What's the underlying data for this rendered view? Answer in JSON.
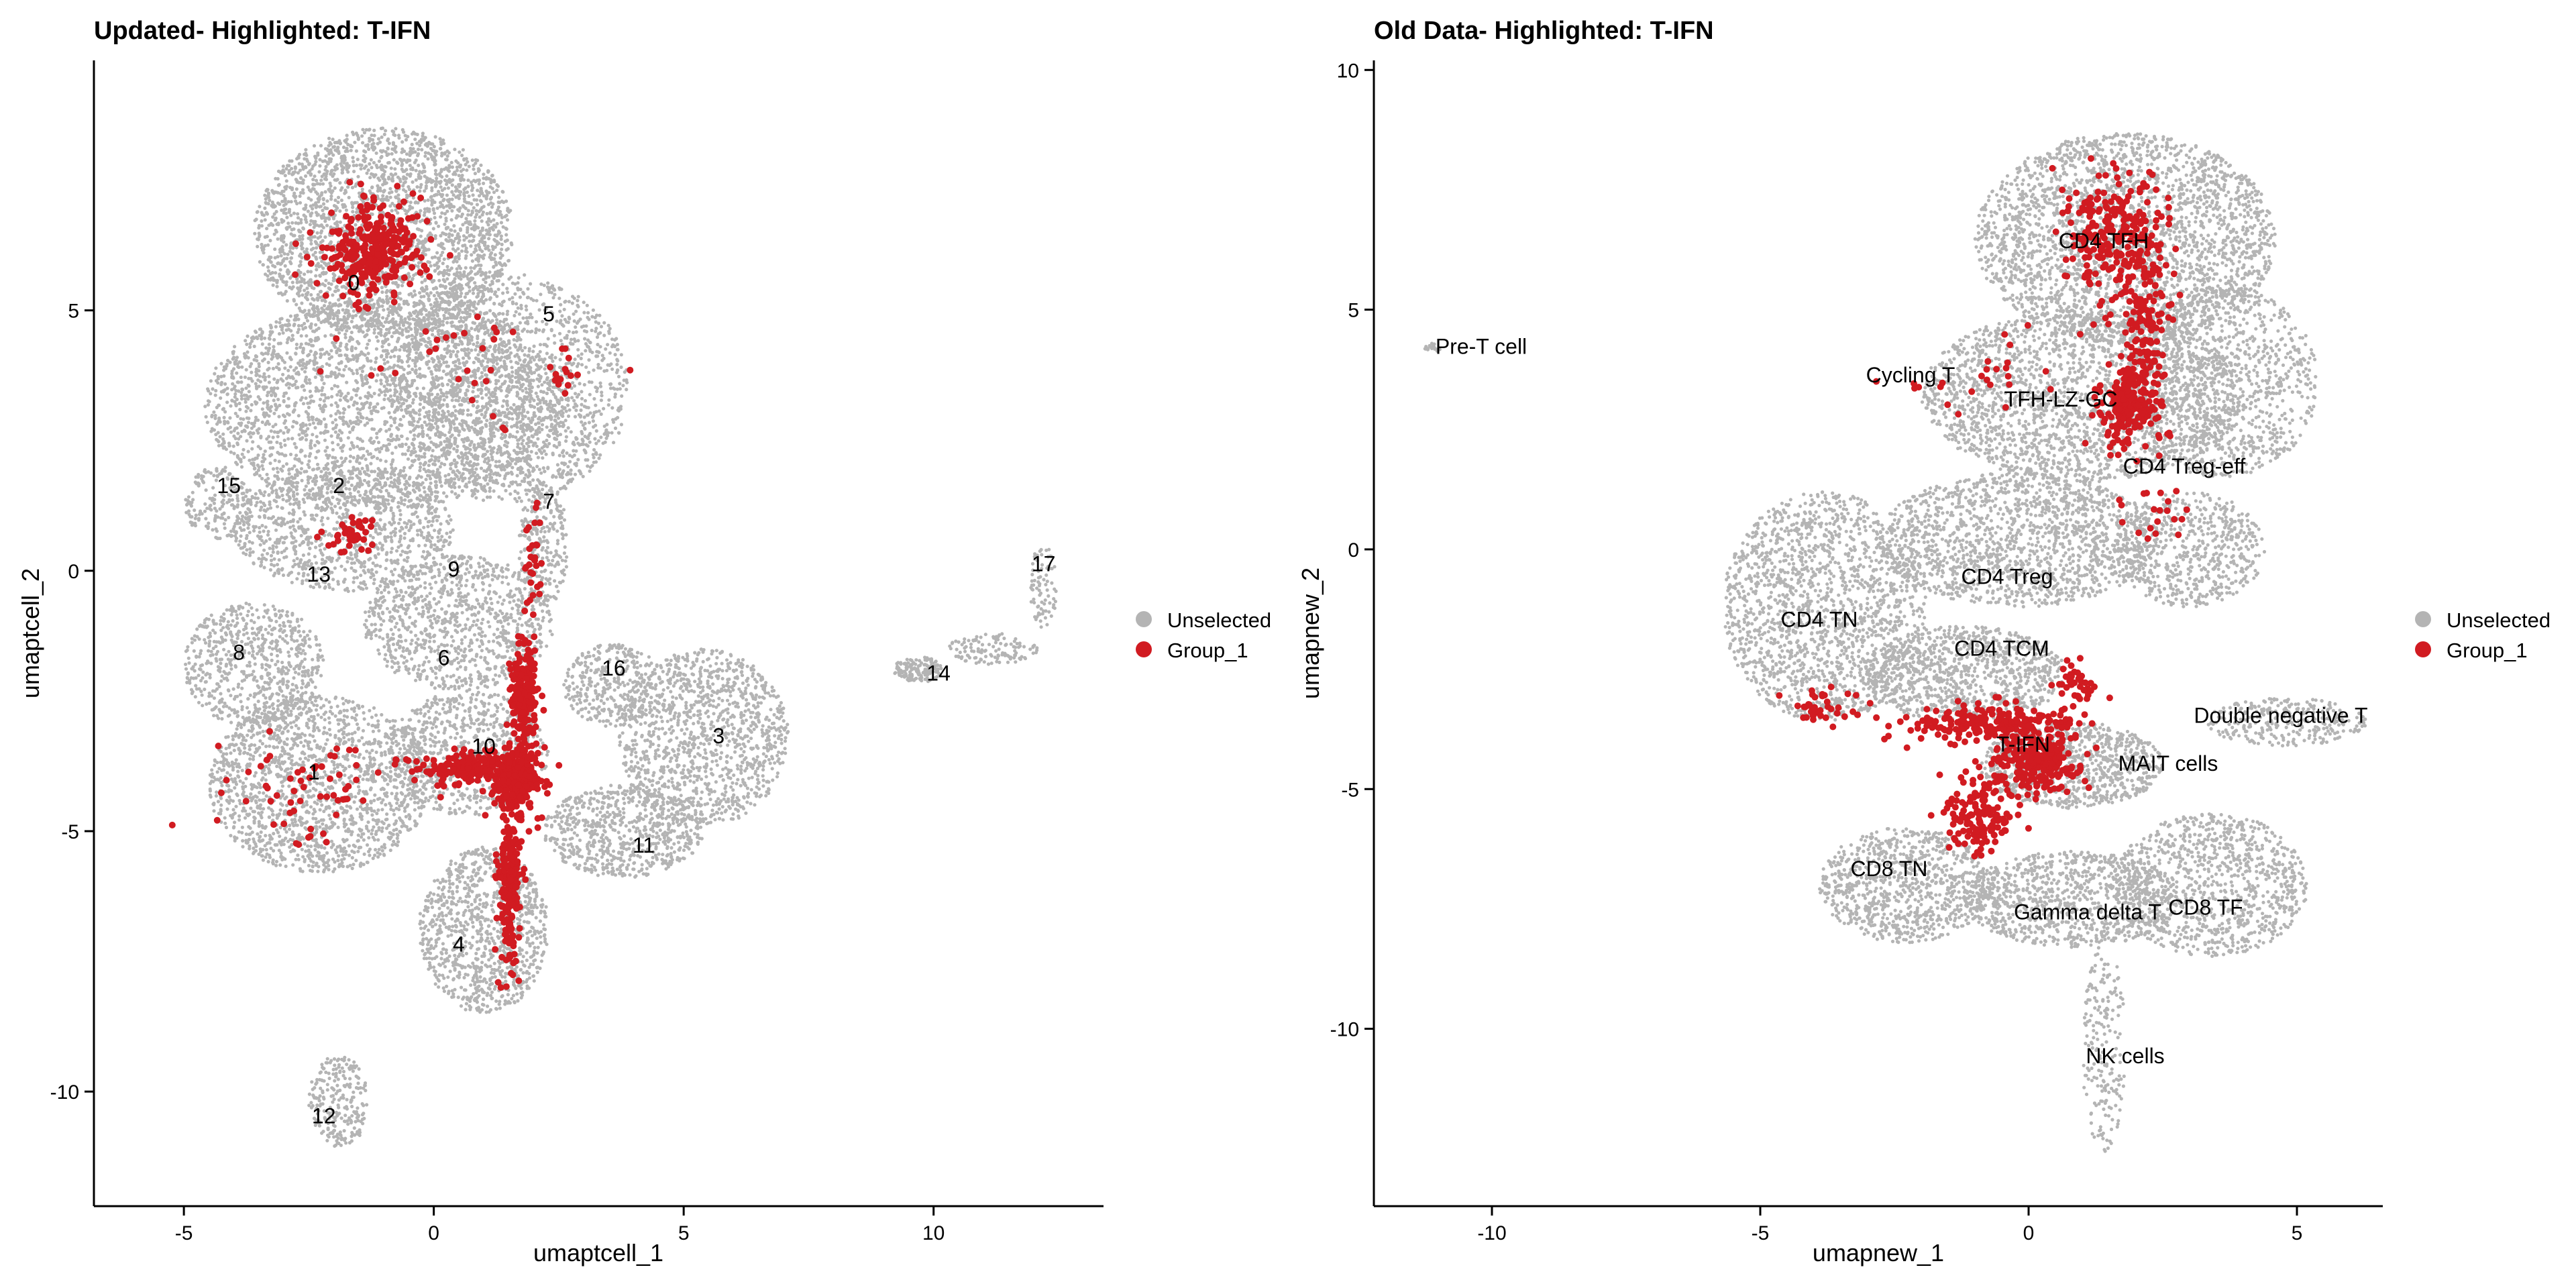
{
  "colors": {
    "unselected": "#b4b4b4",
    "group": "#d11b21",
    "axis": "#000000",
    "text": "#000000"
  },
  "chart_data": [
    {
      "type": "scatter",
      "title": "Updated- Highlighted: T-IFN",
      "xlabel": "umaptcell_1",
      "ylabel": "umaptcell_2",
      "xlim": [
        -6.8,
        13.4
      ],
      "ylim": [
        -12.2,
        9.8
      ],
      "xticks": [
        -5,
        0,
        5,
        10
      ],
      "yticks": [
        -10,
        -5,
        0,
        5
      ],
      "legend": {
        "placement": "right",
        "entries": [
          {
            "label": "Unselected",
            "color": "#b4b4b4"
          },
          {
            "label": "Group_1",
            "color": "#d11b21"
          }
        ]
      },
      "cluster_labels": [
        {
          "text": "0",
          "x": -1.6,
          "y": 5.5
        },
        {
          "text": "1",
          "x": -2.4,
          "y": -3.9
        },
        {
          "text": "2",
          "x": -1.9,
          "y": 1.6
        },
        {
          "text": "3",
          "x": 5.7,
          "y": -3.2
        },
        {
          "text": "4",
          "x": 0.5,
          "y": -7.2
        },
        {
          "text": "5",
          "x": 2.3,
          "y": 4.9
        },
        {
          "text": "6",
          "x": 0.2,
          "y": -1.7
        },
        {
          "text": "7",
          "x": 2.3,
          "y": 1.3
        },
        {
          "text": "8",
          "x": -3.9,
          "y": -1.6
        },
        {
          "text": "9",
          "x": 0.4,
          "y": 0.0
        },
        {
          "text": "10",
          "x": 1.0,
          "y": -3.4
        },
        {
          "text": "11",
          "x": 4.2,
          "y": -5.3
        },
        {
          "text": "12",
          "x": -2.2,
          "y": -10.5
        },
        {
          "text": "13",
          "x": -2.3,
          "y": -0.1
        },
        {
          "text": "14",
          "x": 10.1,
          "y": -2.0
        },
        {
          "text": "15",
          "x": -4.1,
          "y": 1.6
        },
        {
          "text": "16",
          "x": 3.6,
          "y": -1.9
        },
        {
          "text": "17",
          "x": 12.2,
          "y": 0.1
        }
      ],
      "unselected_regions": [
        {
          "cx": -1.0,
          "cy": 6.5,
          "rx": 2.6,
          "ry": 2.0,
          "n": 2600
        },
        {
          "cx": -1.0,
          "cy": 3.2,
          "rx": 3.6,
          "ry": 2.0,
          "n": 2800
        },
        {
          "cx": 1.5,
          "cy": 3.5,
          "rx": 2.4,
          "ry": 2.2,
          "n": 1600
        },
        {
          "cx": -1.8,
          "cy": 0.8,
          "rx": 2.2,
          "ry": 1.2,
          "n": 1000
        },
        {
          "cx": -4.3,
          "cy": 1.3,
          "rx": 0.7,
          "ry": 0.7,
          "n": 200
        },
        {
          "cx": 0.5,
          "cy": -1.0,
          "rx": 1.9,
          "ry": 1.3,
          "n": 1000
        },
        {
          "cx": -3.6,
          "cy": -1.8,
          "rx": 1.4,
          "ry": 1.2,
          "n": 700
        },
        {
          "cx": -2.3,
          "cy": -4.1,
          "rx": 2.2,
          "ry": 1.7,
          "n": 1600
        },
        {
          "cx": 0.7,
          "cy": -3.5,
          "rx": 1.6,
          "ry": 1.2,
          "n": 800
        },
        {
          "cx": 5.4,
          "cy": -3.2,
          "rx": 1.7,
          "ry": 1.7,
          "n": 1200
        },
        {
          "cx": 3.6,
          "cy": -2.2,
          "rx": 1.0,
          "ry": 0.8,
          "n": 350
        },
        {
          "cx": 3.8,
          "cy": -5.0,
          "rx": 1.6,
          "ry": 0.9,
          "n": 700
        },
        {
          "cx": 1.0,
          "cy": -6.9,
          "rx": 1.3,
          "ry": 1.6,
          "n": 1000
        },
        {
          "cx": -1.9,
          "cy": -10.2,
          "rx": 0.6,
          "ry": 0.9,
          "n": 250
        },
        {
          "cx": 2.2,
          "cy": 0.5,
          "rx": 0.5,
          "ry": 1.2,
          "n": 250
        },
        {
          "cx": 9.7,
          "cy": -1.9,
          "rx": 0.5,
          "ry": 0.25,
          "n": 150
        },
        {
          "cx": 11.2,
          "cy": -1.5,
          "rx": 0.9,
          "ry": 0.3,
          "n": 120
        },
        {
          "cx": 12.2,
          "cy": -0.3,
          "rx": 0.3,
          "ry": 0.8,
          "n": 80
        }
      ],
      "group_regions": [
        {
          "cx": -1.3,
          "cy": 6.2,
          "rx": 0.9,
          "ry": 0.8,
          "n": 300
        },
        {
          "cx": -1.6,
          "cy": 0.7,
          "rx": 0.5,
          "ry": 0.3,
          "n": 40
        },
        {
          "cx": -2.5,
          "cy": -4.3,
          "rx": 1.6,
          "ry": 0.9,
          "n": 60
        },
        {
          "cx": 1.8,
          "cy": -2.4,
          "rx": 0.25,
          "ry": 0.9,
          "n": 200
        },
        {
          "cx": 1.7,
          "cy": -4.0,
          "rx": 0.5,
          "ry": 0.6,
          "n": 260
        },
        {
          "cx": 0.8,
          "cy": -3.8,
          "rx": 1.0,
          "ry": 0.3,
          "n": 180
        },
        {
          "cx": 1.5,
          "cy": -6.0,
          "rx": 0.2,
          "ry": 1.5,
          "n": 220
        },
        {
          "cx": 2.0,
          "cy": 0.0,
          "rx": 0.2,
          "ry": 1.0,
          "n": 30
        },
        {
          "cx": 0.5,
          "cy": 4.0,
          "rx": 2.2,
          "ry": 1.2,
          "n": 30
        },
        {
          "cx": 2.6,
          "cy": 3.8,
          "rx": 0.3,
          "ry": 0.5,
          "n": 15
        }
      ]
    },
    {
      "type": "scatter",
      "title": "Old Data- Highlighted: T-IFN",
      "xlabel": "umapnew_1",
      "ylabel": "umapnew_2",
      "xlim": [
        -12.2,
        6.6
      ],
      "ylim": [
        -13.7,
        10.2
      ],
      "xticks": [
        -10,
        -5,
        0,
        5
      ],
      "yticks": [
        -10,
        -5,
        0,
        5,
        10
      ],
      "legend": {
        "placement": "right",
        "entries": [
          {
            "label": "Unselected",
            "color": "#b4b4b4"
          },
          {
            "label": "Group_1",
            "color": "#d11b21"
          }
        ]
      },
      "cluster_labels": [
        {
          "text": "CD4 TFH",
          "x": 1.4,
          "y": 6.4
        },
        {
          "text": "Pre-T cell",
          "x": -10.2,
          "y": 4.2
        },
        {
          "text": "Cycling T",
          "x": -2.2,
          "y": 3.6
        },
        {
          "text": "TFH-LZ-GC",
          "x": 0.6,
          "y": 3.1
        },
        {
          "text": "CD4 Treg-eff",
          "x": 2.9,
          "y": 1.7
        },
        {
          "text": "CD4 Treg",
          "x": -0.4,
          "y": -0.6
        },
        {
          "text": "CD4 TN",
          "x": -3.9,
          "y": -1.5
        },
        {
          "text": "CD4 TCM",
          "x": -0.5,
          "y": -2.1
        },
        {
          "text": "Double negative T",
          "x": 4.7,
          "y": -3.5
        },
        {
          "text": "T-IFN",
          "x": -0.1,
          "y": -4.1
        },
        {
          "text": "MAIT cells",
          "x": 2.6,
          "y": -4.5
        },
        {
          "text": "CD8 TN",
          "x": -2.6,
          "y": -6.7
        },
        {
          "text": "Gamma delta T",
          "x": 1.1,
          "y": -7.6
        },
        {
          "text": "CD8 TF",
          "x": 3.3,
          "y": -7.5
        },
        {
          "text": "NK cells",
          "x": 1.8,
          "y": -10.6
        }
      ],
      "unselected_regions": [
        {
          "cx": 1.8,
          "cy": 6.5,
          "rx": 2.8,
          "ry": 2.2,
          "n": 2600
        },
        {
          "cx": 1.0,
          "cy": 3.2,
          "rx": 3.0,
          "ry": 1.8,
          "n": 2200
        },
        {
          "cx": 3.6,
          "cy": 3.5,
          "rx": 1.8,
          "ry": 2.0,
          "n": 1000
        },
        {
          "cx": -0.2,
          "cy": 0.2,
          "rx": 2.6,
          "ry": 1.4,
          "n": 1600
        },
        {
          "cx": 3.0,
          "cy": 0.0,
          "rx": 1.4,
          "ry": 1.2,
          "n": 600
        },
        {
          "cx": -3.8,
          "cy": -1.2,
          "rx": 1.9,
          "ry": 2.4,
          "n": 1700
        },
        {
          "cx": -1.2,
          "cy": -2.6,
          "rx": 1.9,
          "ry": 1.0,
          "n": 1000
        },
        {
          "cx": 0.8,
          "cy": -4.5,
          "rx": 1.7,
          "ry": 0.9,
          "n": 900
        },
        {
          "cx": 4.8,
          "cy": -3.6,
          "rx": 1.5,
          "ry": 0.5,
          "n": 300
        },
        {
          "cx": -2.3,
          "cy": -7.0,
          "rx": 1.6,
          "ry": 1.2,
          "n": 900
        },
        {
          "cx": 0.8,
          "cy": -7.3,
          "rx": 2.0,
          "ry": 1.0,
          "n": 1000
        },
        {
          "cx": 3.4,
          "cy": -7.0,
          "rx": 1.8,
          "ry": 1.5,
          "n": 1000
        },
        {
          "cx": 1.4,
          "cy": -10.4,
          "rx": 0.4,
          "ry": 2.2,
          "n": 200
        },
        {
          "cx": -11.1,
          "cy": 4.2,
          "rx": 0.15,
          "ry": 0.1,
          "n": 20
        }
      ],
      "group_regions": [
        {
          "cx": 1.6,
          "cy": 6.5,
          "rx": 0.8,
          "ry": 1.3,
          "n": 260
        },
        {
          "cx": 1.9,
          "cy": 3.0,
          "rx": 0.6,
          "ry": 0.8,
          "n": 200
        },
        {
          "cx": 2.2,
          "cy": 5.0,
          "rx": 0.4,
          "ry": 1.4,
          "n": 120
        },
        {
          "cx": -0.8,
          "cy": -3.6,
          "rx": 1.5,
          "ry": 0.35,
          "n": 200
        },
        {
          "cx": 0.2,
          "cy": -4.4,
          "rx": 0.7,
          "ry": 0.6,
          "n": 240
        },
        {
          "cx": -0.9,
          "cy": -5.5,
          "rx": 0.6,
          "ry": 0.8,
          "n": 150
        },
        {
          "cx": -3.8,
          "cy": -3.3,
          "rx": 0.6,
          "ry": 0.35,
          "n": 40
        },
        {
          "cx": 0.9,
          "cy": -2.9,
          "rx": 0.4,
          "ry": 0.6,
          "n": 40
        },
        {
          "cx": -0.8,
          "cy": 3.6,
          "rx": 1.5,
          "ry": 0.8,
          "n": 25
        },
        {
          "cx": 2.4,
          "cy": 0.8,
          "rx": 0.8,
          "ry": 0.6,
          "n": 20
        }
      ]
    }
  ]
}
